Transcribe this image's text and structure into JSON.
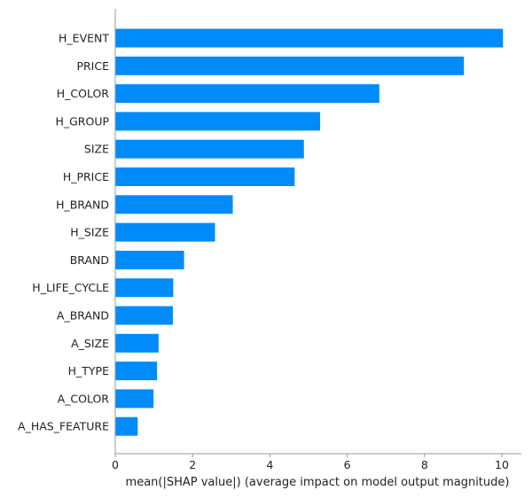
{
  "chart_data": {
    "type": "bar",
    "orientation": "horizontal",
    "categories": [
      "H_EVENT",
      "PRICE",
      "H_COLOR",
      "H_GROUP",
      "SIZE",
      "H_PRICE",
      "H_BRAND",
      "H_SIZE",
      "BRAND",
      "H_LIFE_CYCLE",
      "A_BRAND",
      "A_SIZE",
      "H_TYPE",
      "A_COLOR",
      "A_HAS_FEATURE"
    ],
    "values": [
      10.03,
      9.02,
      6.83,
      5.3,
      4.88,
      4.64,
      3.04,
      2.58,
      1.78,
      1.5,
      1.49,
      1.12,
      1.08,
      0.99,
      0.58
    ],
    "xlabel": "mean(|SHAP value|) (average impact on model output magnitude)",
    "xticks": [
      "0",
      "2",
      "4",
      "6",
      "8",
      "10"
    ],
    "xlim": [
      0,
      10.5
    ],
    "grid": false,
    "bar_color": "#008bfb",
    "axis_color": "#999999"
  }
}
